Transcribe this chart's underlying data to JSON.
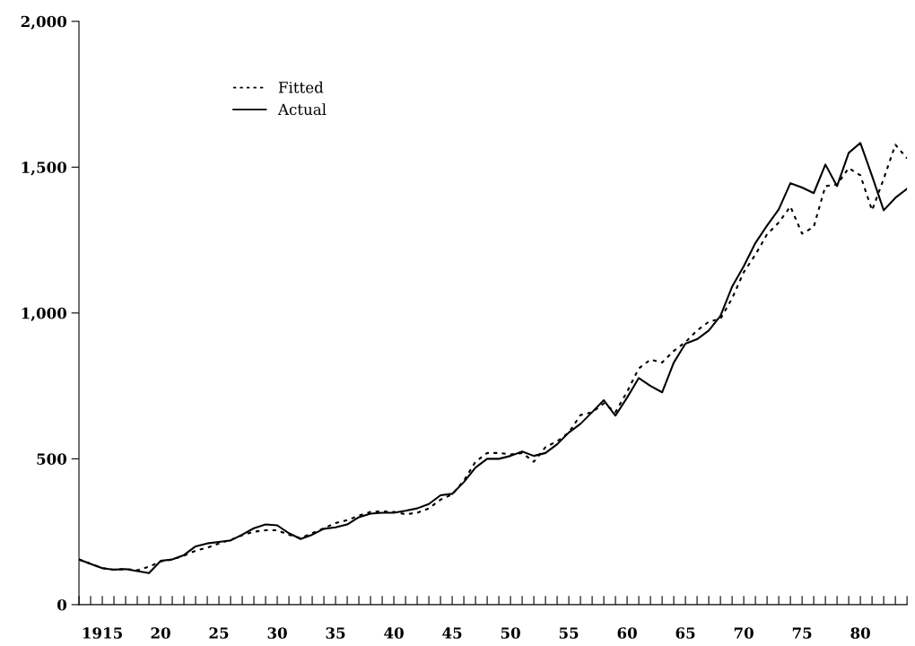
{
  "chart_data": {
    "type": "line",
    "x": [
      1913,
      1914,
      1915,
      1916,
      1917,
      1918,
      1919,
      1920,
      1921,
      1922,
      1923,
      1924,
      1925,
      1926,
      1927,
      1928,
      1929,
      1930,
      1931,
      1932,
      1933,
      1934,
      1935,
      1936,
      1937,
      1938,
      1939,
      1940,
      1941,
      1942,
      1943,
      1944,
      1945,
      1946,
      1947,
      1948,
      1949,
      1950,
      1951,
      1952,
      1953,
      1954,
      1955,
      1956,
      1957,
      1958,
      1959,
      1960,
      1961,
      1962,
      1963,
      1964,
      1965,
      1966,
      1967,
      1968,
      1969,
      1970,
      1971,
      1972,
      1973,
      1974,
      1975,
      1976,
      1977,
      1978,
      1979,
      1980,
      1981,
      1982,
      1983,
      1984
    ],
    "series": [
      {
        "name": "Fitted",
        "color": "#000000",
        "line_style": "dotted",
        "values": [
          155,
          140,
          125,
          120,
          122,
          118,
          130,
          148,
          155,
          168,
          185,
          195,
          210,
          222,
          238,
          250,
          255,
          255,
          240,
          228,
          245,
          262,
          280,
          290,
          305,
          318,
          320,
          318,
          310,
          315,
          330,
          360,
          378,
          425,
          490,
          520,
          520,
          515,
          520,
          490,
          540,
          560,
          590,
          650,
          660,
          690,
          660,
          730,
          810,
          840,
          830,
          870,
          900,
          940,
          970,
          980,
          1050,
          1140,
          1200,
          1270,
          1310,
          1365,
          1272,
          1295,
          1435,
          1440,
          1497,
          1472,
          1352,
          1460,
          1577,
          1530
        ]
      },
      {
        "name": "Actual",
        "color": "#000000",
        "line_style": "solid",
        "values": [
          155,
          140,
          125,
          120,
          122,
          115,
          108,
          150,
          155,
          170,
          200,
          210,
          215,
          220,
          240,
          262,
          275,
          272,
          245,
          225,
          240,
          260,
          265,
          275,
          300,
          312,
          315,
          315,
          322,
          330,
          345,
          375,
          380,
          420,
          470,
          500,
          500,
          510,
          525,
          510,
          520,
          550,
          590,
          620,
          660,
          701,
          648,
          710,
          777,
          750,
          728,
          830,
          895,
          910,
          940,
          990,
          1090,
          1160,
          1240,
          1300,
          1355,
          1445,
          1430,
          1411,
          1509,
          1435,
          1549,
          1583,
          1470,
          1352,
          1395,
          1426
        ]
      }
    ],
    "xlim": [
      1913,
      1984
    ],
    "xticks": [
      {
        "value": 1913,
        "label": null
      },
      {
        "value": 1914,
        "label": null
      },
      {
        "value": 1915,
        "label": "1915"
      },
      {
        "value": 1916,
        "label": null
      },
      {
        "value": 1917,
        "label": null
      },
      {
        "value": 1918,
        "label": null
      },
      {
        "value": 1919,
        "label": null
      },
      {
        "value": 1920,
        "label": "20"
      },
      {
        "value": 1921,
        "label": null
      },
      {
        "value": 1922,
        "label": null
      },
      {
        "value": 1923,
        "label": null
      },
      {
        "value": 1924,
        "label": null
      },
      {
        "value": 1925,
        "label": "25"
      },
      {
        "value": 1926,
        "label": null
      },
      {
        "value": 1927,
        "label": null
      },
      {
        "value": 1928,
        "label": null
      },
      {
        "value": 1929,
        "label": null
      },
      {
        "value": 1930,
        "label": "30"
      },
      {
        "value": 1931,
        "label": null
      },
      {
        "value": 1932,
        "label": null
      },
      {
        "value": 1933,
        "label": null
      },
      {
        "value": 1934,
        "label": null
      },
      {
        "value": 1935,
        "label": "35"
      },
      {
        "value": 1936,
        "label": null
      },
      {
        "value": 1937,
        "label": null
      },
      {
        "value": 1938,
        "label": null
      },
      {
        "value": 1939,
        "label": null
      },
      {
        "value": 1940,
        "label": "40"
      },
      {
        "value": 1941,
        "label": null
      },
      {
        "value": 1942,
        "label": null
      },
      {
        "value": 1943,
        "label": null
      },
      {
        "value": 1944,
        "label": null
      },
      {
        "value": 1945,
        "label": "45"
      },
      {
        "value": 1946,
        "label": null
      },
      {
        "value": 1947,
        "label": null
      },
      {
        "value": 1948,
        "label": null
      },
      {
        "value": 1949,
        "label": null
      },
      {
        "value": 1950,
        "label": "50"
      },
      {
        "value": 1951,
        "label": null
      },
      {
        "value": 1952,
        "label": null
      },
      {
        "value": 1953,
        "label": null
      },
      {
        "value": 1954,
        "label": null
      },
      {
        "value": 1955,
        "label": "55"
      },
      {
        "value": 1956,
        "label": null
      },
      {
        "value": 1957,
        "label": null
      },
      {
        "value": 1958,
        "label": null
      },
      {
        "value": 1959,
        "label": null
      },
      {
        "value": 1960,
        "label": "60"
      },
      {
        "value": 1961,
        "label": null
      },
      {
        "value": 1962,
        "label": null
      },
      {
        "value": 1963,
        "label": null
      },
      {
        "value": 1964,
        "label": null
      },
      {
        "value": 1965,
        "label": "65"
      },
      {
        "value": 1966,
        "label": null
      },
      {
        "value": 1967,
        "label": null
      },
      {
        "value": 1968,
        "label": null
      },
      {
        "value": 1969,
        "label": null
      },
      {
        "value": 1970,
        "label": "70"
      },
      {
        "value": 1971,
        "label": null
      },
      {
        "value": 1972,
        "label": null
      },
      {
        "value": 1973,
        "label": null
      },
      {
        "value": 1974,
        "label": null
      },
      {
        "value": 1975,
        "label": "75"
      },
      {
        "value": 1976,
        "label": null
      },
      {
        "value": 1977,
        "label": null
      },
      {
        "value": 1978,
        "label": null
      },
      {
        "value": 1979,
        "label": null
      },
      {
        "value": 1980,
        "label": "80"
      },
      {
        "value": 1981,
        "label": null
      },
      {
        "value": 1982,
        "label": null
      },
      {
        "value": 1983,
        "label": null
      },
      {
        "value": 1984,
        "label": null
      }
    ],
    "ylim": [
      0,
      2000
    ],
    "yticks": [
      0,
      500,
      {
        "value": 1000,
        "label": "1,000"
      },
      {
        "value": 1500,
        "label": "1,500"
      },
      {
        "value": 2000,
        "label": "2,000"
      }
    ],
    "legend": "top left",
    "grid": false
  }
}
